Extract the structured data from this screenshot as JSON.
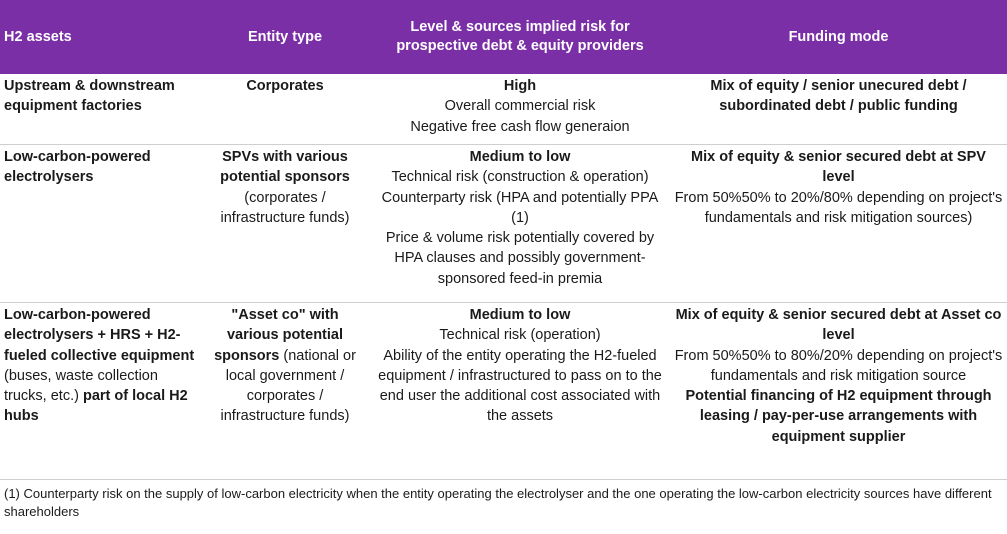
{
  "headers": {
    "assets": "H2 assets",
    "entity": "Entity type",
    "risk_line1": "Level & sources implied risk for",
    "risk_line2": "prospective debt & equity providers",
    "funding": "Funding mode"
  },
  "rows": [
    {
      "asset": "Upstream & downstream equipment factories",
      "entity_bold": "Corporates",
      "risk_level": "High",
      "risk_lines": [
        "Overall commercial risk",
        "Negative free cash flow generaion"
      ],
      "funding_bold": "Mix of equity / senior unecured debt / subordinated debt / public funding"
    },
    {
      "asset": "Low-carbon-powered electrolysers",
      "entity_bold": "SPVs with various potential sponsors",
      "entity_rest": "(corporates / infrastructure funds)",
      "risk_level": "Medium to low",
      "risk_lines": [
        "Technical risk (construction & operation)",
        "Counterparty risk (HPA and potentially PPA (1)",
        "Price & volume risk potentially covered by HPA clauses and possibly government-sponsored feed-in premia"
      ],
      "funding_bold": "Mix of equity & senior secured debt at SPV level",
      "funding_rest": "From 50%50% to 20%/80% depending on project's fundamentals and risk mitigation sources)"
    },
    {
      "asset_bold": "Low-carbon-powered electrolysers + HRS + H2-fueled collective equipment",
      "asset_rest": "(buses, waste collection trucks, etc.)",
      "asset_bold2": "part of local H2 hubs",
      "entity_bold": "\"Asset co\" with various potential sponsors",
      "entity_rest": "(national or local government / corporates / infrastructure funds)",
      "risk_level": "Medium to low",
      "risk_lines": [
        "Technical risk (operation)",
        "Ability of the entity operating the H2-fueled equipment / infrastructured to pass on to the end user the additional cost associated with the assets"
      ],
      "funding_bold": "Mix of equity & senior secured debt at Asset co level",
      "funding_rest": "From 50%50% to 80%/20% depending on project's fundamentals and risk mitigation source",
      "funding_bold2": "Potential financing of H2 equipment through leasing / pay-per-use arrangements with equipment supplier"
    }
  ],
  "footnote": "(1) Counterparty risk on the supply of low-carbon electricity when the entity operating the electrolyser and the one operating the low-carbon electricity sources have different shareholders"
}
